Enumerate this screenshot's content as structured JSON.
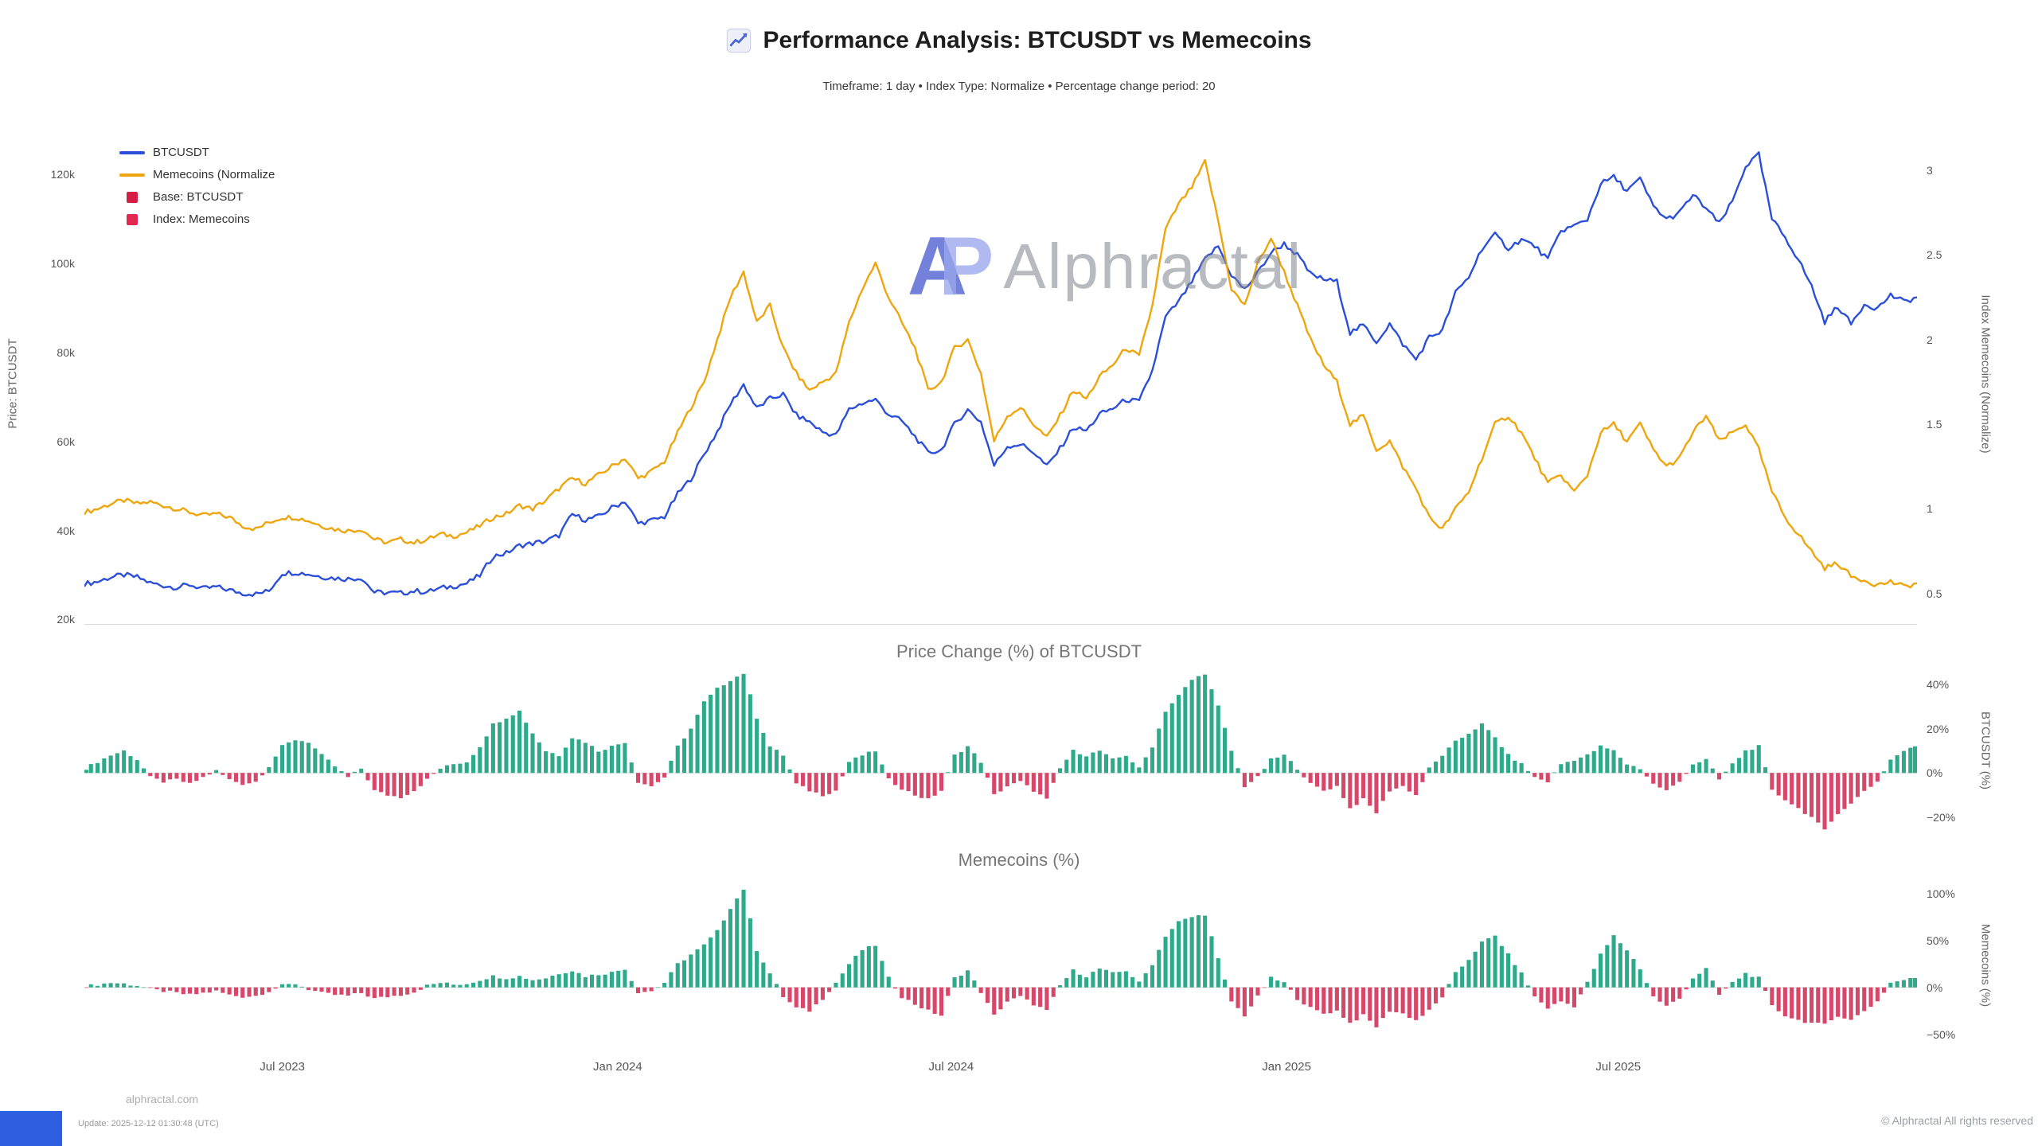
{
  "header": {
    "title": "Performance Analysis: BTCUSDT vs Memecoins",
    "subtitle": "Timeframe: 1 day  •  Index Type: Normalize  •  Percentage change period: 20"
  },
  "watermark": {
    "logo_a": "A",
    "logo_p": "P",
    "text": "Alphractal"
  },
  "legend": {
    "items": [
      {
        "label": "BTCUSDT",
        "swatch": "line",
        "color": "#2b4fd8"
      },
      {
        "label": "Memecoins (Normalize",
        "swatch": "line",
        "color": "#efa50d"
      },
      {
        "label": "Base: BTCUSDT",
        "swatch": "square",
        "color": "#d31f41"
      },
      {
        "label": "Index: Memecoins",
        "swatch": "square",
        "color": "#e22850"
      }
    ]
  },
  "footer": {
    "site": "alphractal.com",
    "update": "Update: 2025-12-12 01:30:48 (UTC)",
    "copyright": "© Alphractal All rights reserved"
  },
  "accents": {
    "bottom_left_bar_color": "#2e5fe0"
  },
  "chart_data": {
    "x_axis": {
      "ticks": [
        {
          "label": "Jul 2023",
          "pos": 0.108
        },
        {
          "label": "Jan 2024",
          "pos": 0.291
        },
        {
          "label": "Jul 2024",
          "pos": 0.473
        },
        {
          "label": "Jan 2025",
          "pos": 0.656
        },
        {
          "label": "Jul 2025",
          "pos": 0.837
        }
      ]
    },
    "main_chart": {
      "type": "line",
      "left_axis": {
        "label": "Price: BTCUSDT",
        "unit": "k",
        "range": [
          19,
          127
        ],
        "ticks": [
          {
            "label": "120k",
            "value": 120
          },
          {
            "label": "100k",
            "value": 100
          },
          {
            "label": "80k",
            "value": 80
          },
          {
            "label": "60k",
            "value": 60
          },
          {
            "label": "40k",
            "value": 40
          },
          {
            "label": "20k",
            "value": 20
          }
        ]
      },
      "right_axis": {
        "label": "Index Memecoins (Normalize)",
        "range": [
          0.32,
          3.16
        ],
        "ticks": [
          {
            "label": "3",
            "value": 3
          },
          {
            "label": "2.5",
            "value": 2.5
          },
          {
            "label": "2",
            "value": 2
          },
          {
            "label": "1.5",
            "value": 1.5
          },
          {
            "label": "1",
            "value": 1
          },
          {
            "label": "0.5",
            "value": 0.5
          }
        ]
      },
      "series": [
        {
          "name": "BTCUSDT",
          "axis": "left",
          "color": "#2b4fd8",
          "values": [
            28,
            28.5,
            29.5,
            30,
            29.5,
            28.2,
            27.6,
            27.2,
            27.8,
            26.9,
            27.3,
            26.6,
            25.9,
            25.7,
            26.4,
            30.4,
            30.6,
            30.2,
            29.6,
            29.3,
            29.1,
            29.4,
            26.1,
            26,
            25.9,
            26.4,
            26.2,
            27,
            27.5,
            28.1,
            29.9,
            34.2,
            34.9,
            36.6,
            37.1,
            37.6,
            38.9,
            43.6,
            42.4,
            43.1,
            45.1,
            46.6,
            41.6,
            42.2,
            43.1,
            48.2,
            51.6,
            57.1,
            62.2,
            68.4,
            72.8,
            67.4,
            69.6,
            70.6,
            65.9,
            64.4,
            62.1,
            61.4,
            67.2,
            68.6,
            69.4,
            66.1,
            64.6,
            61.1,
            57.4,
            58.1,
            63.9,
            67.1,
            64.4,
            54.6,
            58.9,
            59.4,
            57.6,
            54.4,
            58.4,
            63.1,
            62.4,
            66.1,
            67.4,
            69.4,
            68.9,
            75.9,
            87.9,
            91.4,
            95.9,
            100.9,
            103.9,
            97.4,
            94.1,
            97.9,
            102.4,
            104.4,
            101.9,
            97.6,
            96.4,
            95.9,
            84.4,
            86.1,
            82.4,
            86.4,
            81.9,
            78.4,
            83.4,
            84.9,
            93.4,
            96.9,
            103.4,
            106.4,
            103.4,
            105.4,
            103.9,
            100.9,
            107.4,
            108.4,
            109.9,
            117.9,
            119.4,
            116.4,
            118.9,
            112.9,
            109.9,
            111.4,
            115.4,
            112.4,
            108.9,
            113.9,
            121.9,
            124.4,
            109.9,
            105.9,
            100.9,
            94.9,
            86.9,
            90.4,
            86.4,
            90.9,
            89.9,
            92.9,
            91.4,
            92.4
          ]
        },
        {
          "name": "Memecoins (Normalize)",
          "axis": "right",
          "color": "#efa50d",
          "values": [
            0.98,
            1.0,
            1.03,
            1.05,
            1.03,
            1.04,
            1.02,
            1.0,
            0.98,
            0.96,
            0.97,
            0.95,
            0.9,
            0.88,
            0.92,
            0.95,
            0.95,
            0.93,
            0.9,
            0.88,
            0.87,
            0.88,
            0.82,
            0.8,
            0.82,
            0.8,
            0.82,
            0.85,
            0.84,
            0.86,
            0.9,
            0.95,
            0.97,
            1.02,
            1.0,
            1.05,
            1.12,
            1.18,
            1.15,
            1.2,
            1.25,
            1.3,
            1.18,
            1.22,
            1.28,
            1.45,
            1.6,
            1.75,
            2.0,
            2.25,
            2.4,
            2.1,
            2.2,
            1.95,
            1.8,
            1.7,
            1.75,
            1.8,
            2.1,
            2.3,
            2.45,
            2.25,
            2.1,
            1.95,
            1.7,
            1.75,
            1.95,
            2.0,
            1.8,
            1.4,
            1.55,
            1.6,
            1.5,
            1.42,
            1.55,
            1.7,
            1.65,
            1.78,
            1.85,
            1.95,
            1.9,
            2.2,
            2.65,
            2.8,
            2.9,
            3.05,
            2.7,
            2.3,
            2.2,
            2.45,
            2.6,
            2.4,
            2.2,
            2.0,
            1.85,
            1.75,
            1.5,
            1.55,
            1.35,
            1.4,
            1.25,
            1.12,
            0.95,
            0.88,
            1.0,
            1.1,
            1.3,
            1.5,
            1.55,
            1.45,
            1.3,
            1.15,
            1.2,
            1.1,
            1.2,
            1.45,
            1.5,
            1.4,
            1.5,
            1.35,
            1.25,
            1.3,
            1.45,
            1.55,
            1.4,
            1.45,
            1.5,
            1.35,
            1.1,
            0.95,
            0.85,
            0.75,
            0.65,
            0.68,
            0.6,
            0.58,
            0.55,
            0.57,
            0.54,
            0.56
          ]
        }
      ]
    },
    "btc_change_chart": {
      "type": "bar",
      "title": "Price Change (%) of BTCUSDT",
      "positive_color": "#2ea98b",
      "negative_color": "#d6476a",
      "right_axis": {
        "label": "BTCUSDT (%)",
        "range": [
          -26.5,
          45
        ],
        "ticks": [
          {
            "label": "40%",
            "value": 40
          },
          {
            "label": "20%",
            "value": 20
          },
          {
            "label": "0%",
            "value": 0
          },
          {
            "label": "−20%",
            "value": -20
          }
        ]
      },
      "values": [
        2,
        5,
        8,
        10,
        6,
        -2,
        -4,
        -3,
        -5,
        -2,
        1,
        -3,
        -5,
        -4,
        3,
        12,
        15,
        14,
        8,
        3,
        -2,
        2,
        -8,
        -10,
        -11,
        -8,
        -3,
        2,
        4,
        5,
        12,
        22,
        25,
        28,
        18,
        10,
        8,
        16,
        14,
        10,
        12,
        14,
        -4,
        -6,
        -2,
        12,
        20,
        32,
        38,
        42,
        45,
        25,
        12,
        8,
        -5,
        -8,
        -10,
        -8,
        5,
        8,
        10,
        -3,
        -7,
        -10,
        -12,
        -8,
        8,
        12,
        5,
        -10,
        -6,
        -4,
        -8,
        -12,
        2,
        10,
        8,
        10,
        6,
        8,
        2,
        12,
        28,
        35,
        42,
        45,
        30,
        10,
        -6,
        -2,
        6,
        8,
        2,
        -5,
        -8,
        -6,
        -16,
        -12,
        -18,
        -8,
        -6,
        -10,
        2,
        8,
        14,
        18,
        22,
        16,
        8,
        4,
        -2,
        -4,
        4,
        6,
        8,
        12,
        10,
        4,
        2,
        -5,
        -8,
        -4,
        4,
        6,
        -3,
        4,
        10,
        12,
        -8,
        -12,
        -16,
        -20,
        -26,
        -18,
        -14,
        -8,
        -4,
        6,
        10,
        12
      ]
    },
    "meme_change_chart": {
      "type": "bar",
      "title": "Memecoins (%)",
      "positive_color": "#2ea98b",
      "negative_color": "#d6476a",
      "right_axis": {
        "label": "Memecoins (%)",
        "range": [
          -69,
          111
        ],
        "ticks": [
          {
            "label": "100%",
            "value": 100
          },
          {
            "label": "50%",
            "value": 50
          },
          {
            "label": "0%",
            "value": 0
          },
          {
            "label": "−50%",
            "value": -50
          }
        ]
      },
      "values": [
        1,
        3,
        5,
        4,
        2,
        -2,
        -4,
        -6,
        -8,
        -6,
        -4,
        -8,
        -10,
        -9,
        -4,
        2,
        4,
        -2,
        -6,
        -8,
        -9,
        -6,
        -12,
        -10,
        -8,
        -5,
        2,
        5,
        3,
        4,
        8,
        12,
        10,
        12,
        8,
        10,
        15,
        18,
        12,
        14,
        16,
        20,
        -5,
        -4,
        5,
        25,
        35,
        45,
        60,
        85,
        105,
        40,
        15,
        -10,
        -22,
        -25,
        -12,
        5,
        25,
        40,
        45,
        10,
        -10,
        -18,
        -25,
        -30,
        10,
        18,
        -5,
        -30,
        -15,
        -10,
        -18,
        -25,
        2,
        18,
        12,
        20,
        15,
        18,
        5,
        25,
        55,
        70,
        75,
        78,
        30,
        -15,
        -30,
        -10,
        10,
        5,
        -12,
        -22,
        -28,
        -25,
        -38,
        -30,
        -42,
        -25,
        -28,
        -35,
        -25,
        -10,
        15,
        30,
        48,
        55,
        35,
        15,
        -10,
        -22,
        -15,
        -20,
        5,
        35,
        55,
        40,
        20,
        -10,
        -20,
        -12,
        10,
        20,
        -8,
        5,
        15,
        10,
        -20,
        -30,
        -35,
        -38,
        -40,
        -30,
        -35,
        -25,
        -15,
        5,
        8,
        10
      ]
    }
  }
}
